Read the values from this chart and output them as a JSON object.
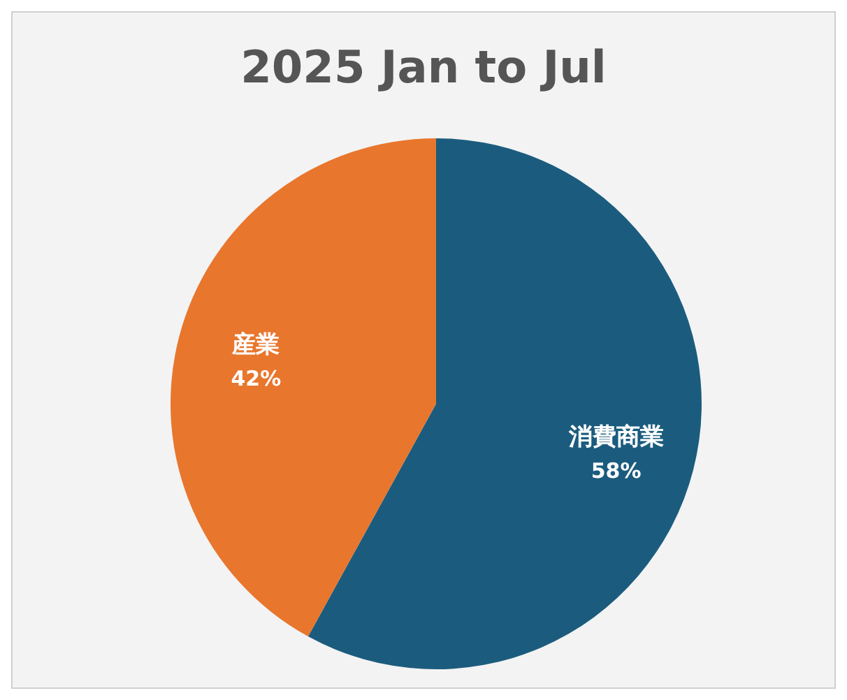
{
  "chart_data": {
    "type": "pie",
    "title": "2025 Jan to Jul",
    "categories": [
      "消費商業",
      "産業"
    ],
    "values": [
      58,
      42
    ],
    "value_labels": [
      "58%",
      "42%"
    ],
    "colors": [
      "#1b5c7e",
      "#e8762d"
    ]
  }
}
